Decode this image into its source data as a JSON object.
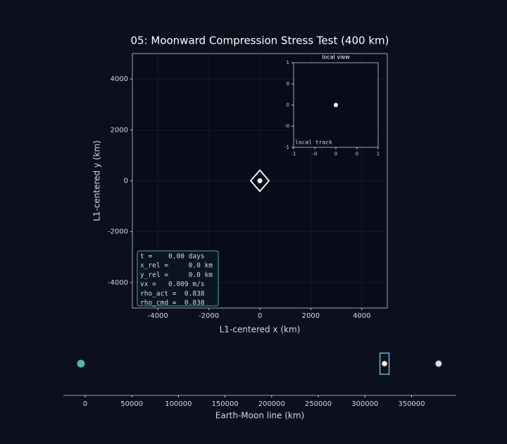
{
  "chart_data": [
    {
      "type": "scatter",
      "title": "05: Moonward Compression Stress Test (400 km)",
      "x_label": "L1-centered x (km)",
      "y_label": "L1-centered y (km)",
      "xlim": [
        -5000,
        5000
      ],
      "ylim": [
        -5000,
        5000
      ],
      "xticks": [
        -4000,
        -2000,
        0,
        2000,
        4000
      ],
      "yticks": [
        -4000,
        -2000,
        0,
        2000,
        4000
      ],
      "grid": true,
      "x": [
        0
      ],
      "y": [
        0
      ],
      "color": "#ffffff",
      "annotation": [
        "t =    0.00 days",
        "x_rel =     0.0 km",
        "y_rel =     0.0 km",
        "vx =   0.009 m/s",
        "rho_act =  0.838",
        "rho_cmd =  0.838"
      ]
    },
    {
      "type": "scatter",
      "title": "local view",
      "annotation": [
        "local track"
      ],
      "xlim": [
        -1,
        1
      ],
      "ylim": [
        -1,
        1
      ],
      "xticks": [
        {
          "value": -1,
          "label": "-1"
        },
        {
          "value": -0.5,
          "label": "-0"
        },
        {
          "value": 0,
          "label": "0"
        },
        {
          "value": 0.5,
          "label": "0"
        },
        {
          "value": 1,
          "label": "1"
        }
      ],
      "yticks": [
        {
          "value": -1,
          "label": "-1"
        },
        {
          "value": -0.5,
          "label": "-0"
        },
        {
          "value": 0,
          "label": "0"
        },
        {
          "value": 0.5,
          "label": "0"
        },
        {
          "value": 1,
          "label": "1"
        }
      ],
      "grid": false,
      "x": [
        0
      ],
      "y": [
        0
      ],
      "color": "#ffffff"
    },
    {
      "type": "strip",
      "x_label": "Earth-Moon line (km)",
      "xlim": [
        -23400,
        398000
      ],
      "xticks": [
        0,
        50000,
        100000,
        150000,
        200000,
        250000,
        300000,
        350000
      ],
      "x": [
        -4600,
        321000,
        379000
      ],
      "colors": [
        "#4fb8a8",
        "#ffffff",
        "#d8dcec"
      ]
    }
  ]
}
